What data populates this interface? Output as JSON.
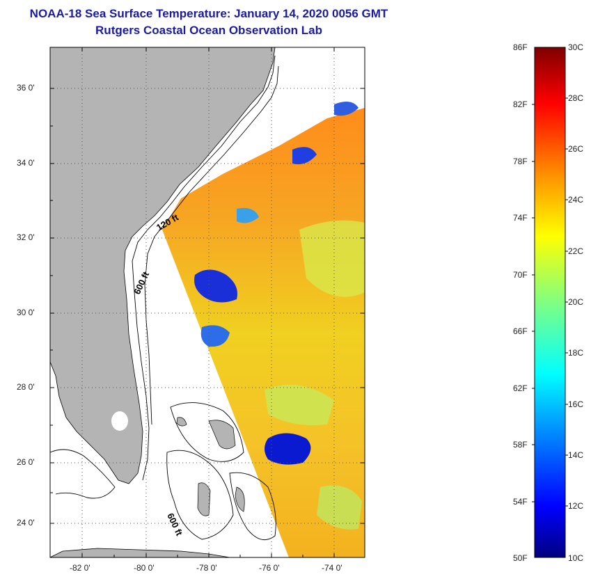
{
  "title": "NOAA-18 Sea Surface Temperature:  January 14, 2020 0056 GMT",
  "subtitle": "Rutgers Coastal Ocean Observation Lab",
  "lat_labels": [
    "36 0'",
    "34 0'",
    "32 0'",
    "30 0'",
    "28 0'",
    "26 0'",
    "24 0'"
  ],
  "lon_labels": [
    "-82 0'",
    "-80 0'",
    "-78 0'",
    "-76 0'",
    "-74 0'"
  ],
  "contour_labels": [
    "120 ft",
    "600 ft",
    "600 ft"
  ],
  "colorbar": {
    "fahrenheit_labels": [
      "86F",
      "82F",
      "78F",
      "74F",
      "70F",
      "66F",
      "62F",
      "58F",
      "54F",
      "50F"
    ],
    "celsius_labels": [
      "30C",
      "28C",
      "26C",
      "24C",
      "22C",
      "20C",
      "18C",
      "16C",
      "14C",
      "12C",
      "10C"
    ]
  },
  "colors": {
    "title": "#1a1aa6",
    "land": "#b4b4b4",
    "water_no_data": "#ffffff"
  }
}
